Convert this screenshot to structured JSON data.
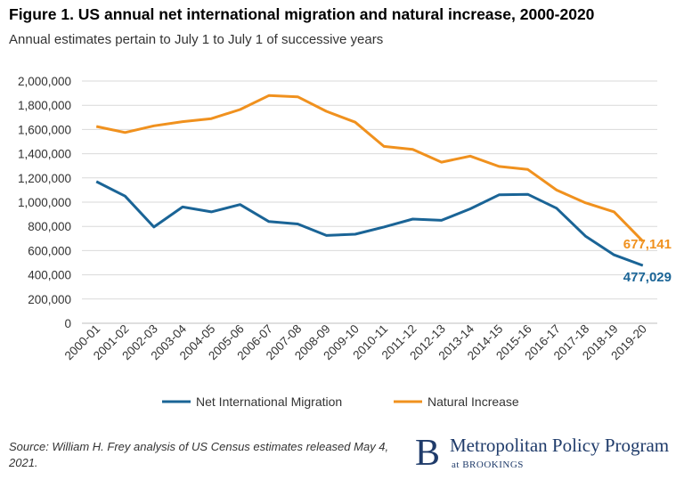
{
  "title": "Figure 1. US annual net international migration and natural increase, 2000-2020",
  "subtitle": "Annual estimates pertain to July 1 to July 1 of successive years",
  "source": "Source: William H. Frey analysis of US Census estimates released May 4, 2021.",
  "logo": {
    "mark": "B",
    "name": "Metropolitan Policy Program",
    "sub_prefix": "at",
    "sub_name": "BROOKINGS"
  },
  "chart_data": {
    "type": "line",
    "x": [
      "2000-01",
      "2001-02",
      "2002-03",
      "2003-04",
      "2004-05",
      "2005-06",
      "2006-07",
      "2007-08",
      "2008-09",
      "2009-10",
      "2010-11",
      "2011-12",
      "2012-13",
      "2013-14",
      "2014-15",
      "2015-16",
      "2016-17",
      "2017-18",
      "2018-19",
      "2019-20"
    ],
    "ylim": [
      0,
      2000000
    ],
    "yticks": [
      0,
      200000,
      400000,
      600000,
      800000,
      1000000,
      1200000,
      1400000,
      1600000,
      1800000,
      2000000
    ],
    "ytick_labels": [
      "0",
      "200,000",
      "400,000",
      "600,000",
      "800,000",
      "1,000,000",
      "1,200,000",
      "1,400,000",
      "1,600,000",
      "1,800,000",
      "2,000,000"
    ],
    "grid": true,
    "legend_position": "bottom",
    "series": [
      {
        "name": "Net International Migration",
        "color": "#1a6496",
        "values": [
          1170000,
          1050000,
          795000,
          960000,
          920000,
          980000,
          840000,
          820000,
          725000,
          735000,
          795000,
          860000,
          850000,
          945000,
          1060000,
          1065000,
          950000,
          720000,
          565000,
          477029
        ],
        "end_label": "477,029"
      },
      {
        "name": "Natural Increase",
        "color": "#f0911e",
        "values": [
          1625000,
          1575000,
          1630000,
          1665000,
          1690000,
          1765000,
          1880000,
          1870000,
          1750000,
          1660000,
          1460000,
          1435000,
          1330000,
          1380000,
          1295000,
          1270000,
          1100000,
          995000,
          920000,
          677141
        ],
        "end_label": "677,141"
      }
    ]
  }
}
